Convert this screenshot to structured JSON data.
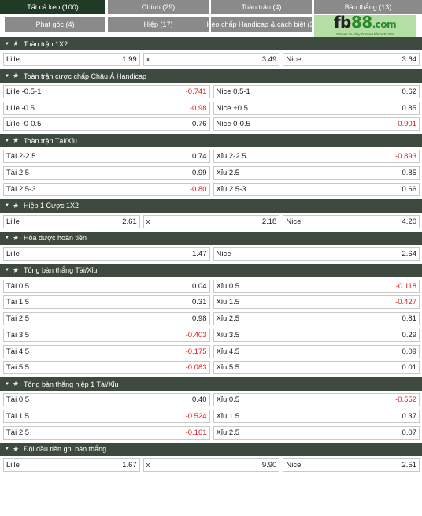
{
  "tabs": [
    {
      "label": "Tất cả kèo (100)",
      "active": true
    },
    {
      "label": "Chính (29)",
      "active": false
    },
    {
      "label": "Toàn trận (4)",
      "active": false
    },
    {
      "label": "Bàn thắng (13)",
      "active": false
    },
    {
      "label": "Phạt góc (4)",
      "active": false
    },
    {
      "label": "Hiệp (17)",
      "active": false
    },
    {
      "label": "Kèo chấp Handicap & cách biệt (3)",
      "active": false
    }
  ],
  "logo": {
    "brand": "fb",
    "number": "88",
    "suffix": ".com",
    "tagline": "Games To Play  Trusted Place To Bet"
  },
  "sections": [
    {
      "title": "Toàn trận 1X2",
      "rows": [
        [
          {
            "label": "Lille",
            "odd": "1.99"
          },
          {
            "label": "x",
            "odd": "3.49"
          },
          {
            "label": "Nice",
            "odd": "3.64"
          }
        ]
      ]
    },
    {
      "title": "Toàn trận cược chấp Châu Á Handicap",
      "rows": [
        [
          {
            "label": "Lille -0.5-1",
            "odd": "-0.741"
          },
          {
            "label": "Nice 0.5-1",
            "odd": "0.62"
          }
        ],
        [
          {
            "label": "Lille -0.5",
            "odd": "-0.98"
          },
          {
            "label": "Nice +0.5",
            "odd": "0.85"
          }
        ],
        [
          {
            "label": "Lille -0-0.5",
            "odd": "0.76"
          },
          {
            "label": "Nice 0-0.5",
            "odd": "-0.901"
          }
        ]
      ]
    },
    {
      "title": "Toàn trận Tài/Xỉu",
      "rows": [
        [
          {
            "label": "Tài 2-2.5",
            "odd": "0.74"
          },
          {
            "label": "Xỉu 2-2.5",
            "odd": "-0.893"
          }
        ],
        [
          {
            "label": "Tài 2.5",
            "odd": "0.99"
          },
          {
            "label": "Xỉu 2.5",
            "odd": "0.85"
          }
        ],
        [
          {
            "label": "Tài 2.5-3",
            "odd": "-0.80"
          },
          {
            "label": "Xỉu 2.5-3",
            "odd": "0.66"
          }
        ]
      ]
    },
    {
      "title": "Hiệp 1 Cược 1X2",
      "rows": [
        [
          {
            "label": "Lille",
            "odd": "2.61"
          },
          {
            "label": "x",
            "odd": "2.18"
          },
          {
            "label": "Nice",
            "odd": "4.20"
          }
        ]
      ]
    },
    {
      "title": "Hòa được hoàn tiền",
      "rows": [
        [
          {
            "label": "Lille",
            "odd": "1.47"
          },
          {
            "label": "Nice",
            "odd": "2.64"
          }
        ]
      ]
    },
    {
      "title": "Tổng bàn thắng Tài/Xỉu",
      "rows": [
        [
          {
            "label": "Tài 0.5",
            "odd": "0.04"
          },
          {
            "label": "Xỉu 0.5",
            "odd": "-0.118"
          }
        ],
        [
          {
            "label": "Tài 1.5",
            "odd": "0.31"
          },
          {
            "label": "Xỉu 1.5",
            "odd": "-0.427"
          }
        ],
        [
          {
            "label": "Tài 2.5",
            "odd": "0.98"
          },
          {
            "label": "Xỉu 2.5",
            "odd": "0.81"
          }
        ],
        [
          {
            "label": "Tài 3.5",
            "odd": "-0.403"
          },
          {
            "label": "Xỉu 3.5",
            "odd": "0.29"
          }
        ],
        [
          {
            "label": "Tài 4.5",
            "odd": "-0.175"
          },
          {
            "label": "Xỉu 4.5",
            "odd": "0.09"
          }
        ],
        [
          {
            "label": "Tài 5.5",
            "odd": "-0.083"
          },
          {
            "label": "Xỉu 5.5",
            "odd": "0.01"
          }
        ]
      ]
    },
    {
      "title": "Tổng bàn thắng hiệp 1 Tài/Xỉu",
      "rows": [
        [
          {
            "label": "Tài 0.5",
            "odd": "0.40"
          },
          {
            "label": "Xỉu 0.5",
            "odd": "-0.552"
          }
        ],
        [
          {
            "label": "Tài 1.5",
            "odd": "-0.524"
          },
          {
            "label": "Xỉu 1.5",
            "odd": "0.37"
          }
        ],
        [
          {
            "label": "Tài 2.5",
            "odd": "-0.161"
          },
          {
            "label": "Xỉu 2.5",
            "odd": "0.07"
          }
        ]
      ]
    },
    {
      "title": "Đội đầu tiên ghi bàn thắng",
      "rows": [
        [
          {
            "label": "Lille",
            "odd": "1.67"
          },
          {
            "label": "x",
            "odd": "9.90"
          },
          {
            "label": "Nice",
            "odd": "2.51"
          }
        ]
      ]
    }
  ],
  "colors": {
    "header_bg": "#3e4a3f",
    "tab_active": "#1f3a25",
    "tab_inactive": "#8a8a8a",
    "negative_odd": "#e01a1a",
    "logo_bg": "#b4dea6"
  },
  "icons": {
    "collapse": "caret-down-icon",
    "favorite": "star-icon"
  }
}
